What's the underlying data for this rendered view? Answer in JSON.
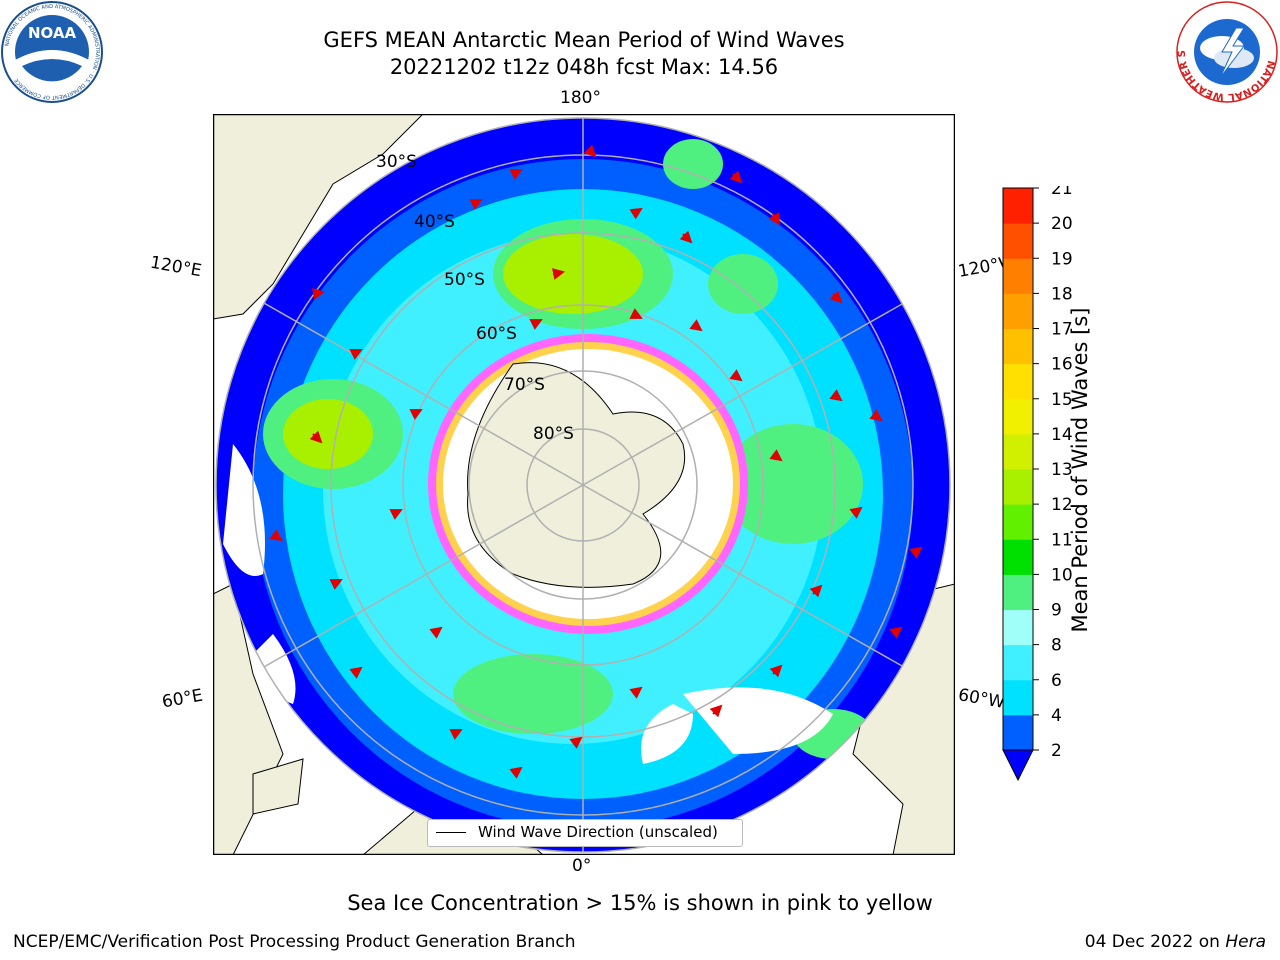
{
  "header": {
    "title_line1": "GEFS MEAN Antarctic Mean Period of Wind Waves",
    "title_line2": "20221202 t12z 048h fcst   Max: 14.56"
  },
  "logos": {
    "left_icon": "noaa-logo",
    "left_text": "NOAA",
    "left_ring_text": "NATIONAL OCEANIC AND ATMOSPHERIC ADMINISTRATION · U.S. DEPARTMENT OF COMMERCE",
    "right_icon": "national-weather-service-logo",
    "right_ring_text": "NATIONAL WEATHER SERVICE"
  },
  "map": {
    "projection": "south-polar-stereographic",
    "longitude_labels": {
      "top": "180°",
      "bottom": "0°",
      "upper_left": "120°E",
      "lower_left": "60°E",
      "upper_right": "120°W",
      "lower_right": "60°W"
    },
    "latitude_labels": [
      "30°S",
      "40°S",
      "50°S",
      "60°S",
      "70°S",
      "80°S"
    ],
    "legend_text": "Wind Wave Direction (unscaled)",
    "colors": {
      "land": "#efefdb",
      "sea_ice_low": "#ff66ff",
      "sea_ice_high": "#ffd24d",
      "arrow": "#e00000",
      "grid": "#b0b0b0"
    }
  },
  "colorbar": {
    "label": "Mean Period of Wind Waves [s]",
    "ticks": [
      "2",
      "4",
      "6",
      "8",
      "9",
      "10",
      "11",
      "12",
      "13",
      "14",
      "15",
      "16",
      "17",
      "18",
      "19",
      "20",
      "21"
    ],
    "colors": [
      "#0060ff",
      "#00e0ff",
      "#40f0ff",
      "#a0fff8",
      "#50f080",
      "#00e000",
      "#60f000",
      "#a8f000",
      "#d0f000",
      "#f0f000",
      "#ffe000",
      "#ffc000",
      "#ffa000",
      "#ff8000",
      "#ff5000",
      "#ff2000"
    ],
    "under_color": "#0000ff"
  },
  "caption": "Sea Ice Concentration > 15% is shown in pink to yellow",
  "footer": {
    "left": "NCEP/EMC/Verification Post Processing Product Generation Branch",
    "right_prefix": "04 Dec 2022 on ",
    "right_host": "Hera"
  }
}
